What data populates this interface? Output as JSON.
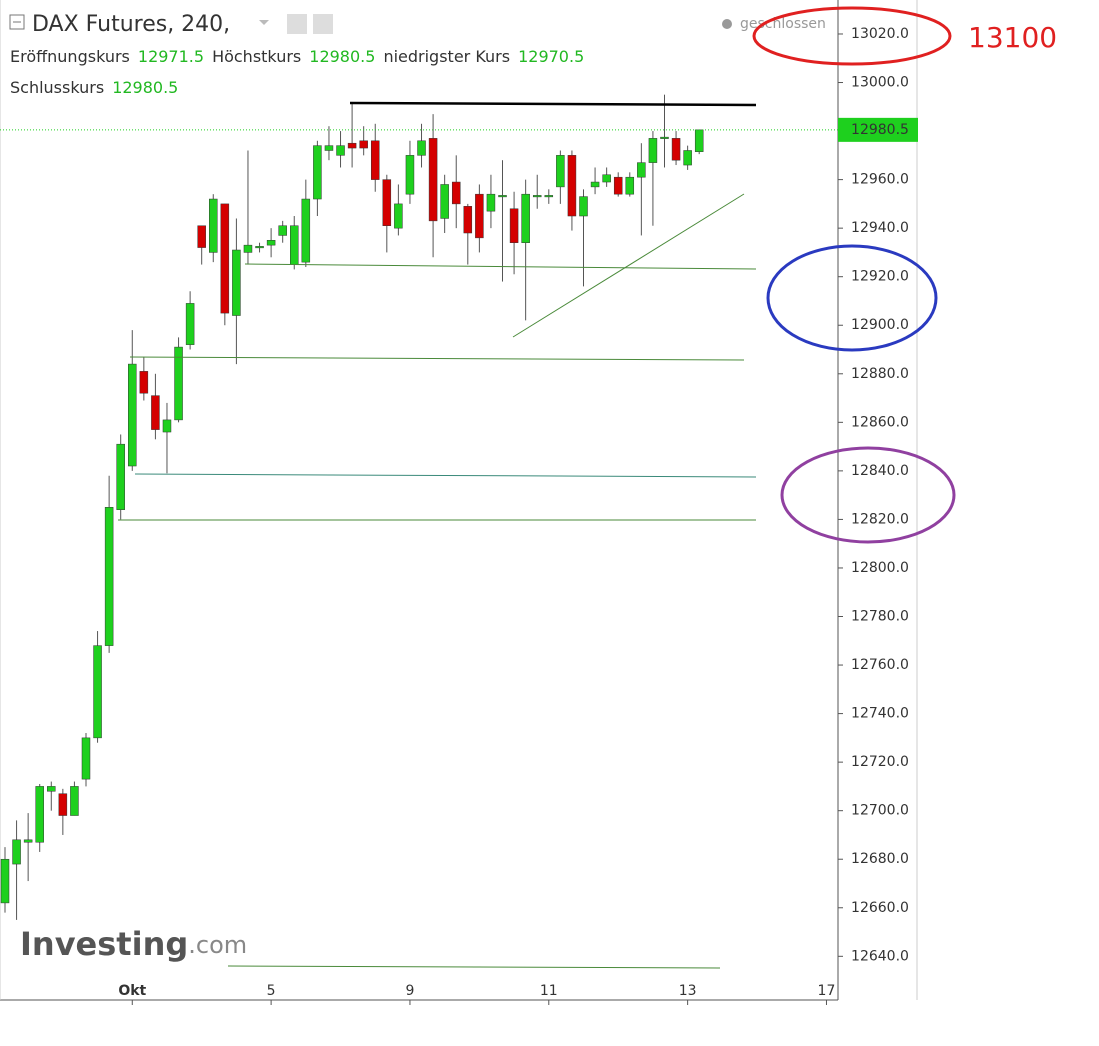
{
  "chart_data": {
    "type": "candlestick",
    "title": "DAX Futures, 240,",
    "legend": [
      {
        "label": "Eröffnungskurs",
        "value": 12971.5
      },
      {
        "label": "Höchstkurs",
        "value": 12980.5
      },
      {
        "label": "niedrigster Kurs",
        "value": 12970.5
      },
      {
        "label": "Schlusskurs",
        "value": 12980.5
      }
    ],
    "status": "geschlossen",
    "annotation": "13100",
    "brand": "Investing",
    "brand_suffix": ".com",
    "last_price": 12980.5,
    "up_color": "#1ed01e",
    "down_color": "#d40000",
    "legend_value_color": "#22b822",
    "ylim": [
      12622,
      13034
    ],
    "yticks": [
      {
        "value": 12640,
        "label": "12640.0"
      },
      {
        "value": 12660,
        "label": "12660.0"
      },
      {
        "value": 12680,
        "label": "12680.0"
      },
      {
        "value": 12700,
        "label": "12700.0"
      },
      {
        "value": 12720,
        "label": "12720.0"
      },
      {
        "value": 12740,
        "label": "12740.0"
      },
      {
        "value": 12760,
        "label": "12760.0"
      },
      {
        "value": 12780,
        "label": "12780.0"
      },
      {
        "value": 12800,
        "label": "12800.0"
      },
      {
        "value": 12820,
        "label": "12820.0"
      },
      {
        "value": 12840,
        "label": "12840.0"
      },
      {
        "value": 12860,
        "label": "12860.0"
      },
      {
        "value": 12880,
        "label": "12880.0"
      },
      {
        "value": 12900,
        "label": "12900.0"
      },
      {
        "value": 12920,
        "label": "12920.0"
      },
      {
        "value": 12940,
        "label": "12940.0"
      },
      {
        "value": 12960,
        "label": "12960.0"
      },
      {
        "value": 12980,
        "label": "12980.0"
      },
      {
        "value": 13000,
        "label": "13000.0"
      },
      {
        "value": 13020,
        "label": "13020.0"
      }
    ],
    "categories": [
      null,
      null,
      null,
      null,
      null,
      null,
      null,
      null,
      null,
      null,
      null,
      "Okt",
      null,
      null,
      null,
      null,
      null,
      null,
      null,
      null,
      null,
      null,
      null,
      "5",
      null,
      null,
      null,
      null,
      null,
      null,
      null,
      null,
      null,
      null,
      null,
      "9",
      null,
      null,
      null,
      null,
      null,
      null,
      null,
      null,
      null,
      null,
      null,
      "11",
      null,
      null,
      null,
      null,
      null,
      null,
      null,
      null,
      null,
      null,
      null,
      "13",
      null,
      null,
      null,
      null,
      null,
      null,
      null,
      null,
      null,
      null,
      null,
      "17"
    ],
    "open": [
      12662,
      12678,
      12687,
      12687,
      12708,
      12707,
      12698,
      12713,
      12730,
      12768,
      12824,
      12842,
      12881,
      12871,
      12856,
      12861,
      12892,
      12941,
      12930,
      12950,
      12904,
      12930,
      12932,
      12933,
      12937,
      12925,
      12926,
      12952,
      12972,
      12970,
      12975,
      12976,
      12976,
      12960,
      12940,
      12954,
      12970,
      12977,
      12944,
      12959,
      12949,
      12954,
      12947,
      12953,
      12948,
      12934,
      12953,
      12953,
      12957,
      12970,
      12945,
      12957,
      12959,
      12961,
      12954,
      12961,
      12967,
      12977,
      12977,
      12966,
      12971.5,
      null,
      null,
      null,
      null,
      null,
      null,
      null,
      null,
      null,
      null,
      null
    ],
    "high": [
      12685,
      12696,
      12699,
      12711,
      12712,
      12709,
      12712,
      12732,
      12774,
      12838,
      12855,
      12898,
      12887,
      12880,
      12868,
      12895,
      12914,
      12941,
      12954,
      12950,
      12944,
      12972,
      12934,
      12940,
      12943,
      12945,
      12960,
      12976,
      12982,
      12980,
      12992,
      12982,
      12983,
      12962,
      12958,
      12976,
      12983,
      12987,
      12962,
      12970,
      12950,
      12958,
      12962,
      12968,
      12955,
      12960,
      12962,
      12956,
      12972,
      12972,
      12956,
      12965,
      12965,
      12963,
      12963,
      12975,
      12980,
      12995,
      12980,
      12974,
      12980.5,
      null,
      null,
      null,
      null,
      null,
      null,
      null,
      null,
      null,
      null,
      null
    ],
    "low": [
      12658,
      12655,
      12671,
      12683,
      12700,
      12690,
      12698,
      12710,
      12728,
      12765,
      12820,
      12840,
      12869,
      12853,
      12839,
      12860,
      12890,
      12925,
      12926,
      12900,
      12884,
      12925,
      12930,
      12928,
      12934,
      12923,
      12924,
      12945,
      12968,
      12965,
      12965,
      12970,
      12955,
      12930,
      12937,
      12950,
      12965,
      12928,
      12938,
      12940,
      12925,
      12930,
      12940,
      12918,
      12921,
      12902,
      12948,
      12950,
      12950,
      12939,
      12916,
      12954,
      12957,
      12953,
      12953,
      12937,
      12941,
      12965,
      12966,
      12964,
      12970.5,
      null,
      null,
      null,
      null,
      null,
      null,
      null,
      null,
      null,
      null,
      null
    ],
    "close": [
      12680,
      12688,
      12688,
      12710,
      12710,
      12698,
      12710,
      12730,
      12768,
      12825,
      12851,
      12884,
      12872,
      12857,
      12861,
      12891,
      12909,
      12932,
      12952,
      12905,
      12931,
      12933,
      12932.5,
      12935,
      12941,
      12941,
      12952,
      12974,
      12974,
      12974,
      12973,
      12973,
      12960,
      12941,
      12950,
      12970,
      12976,
      12943,
      12958,
      12950,
      12938,
      12936,
      12954,
      12953.5,
      12934,
      12954,
      12953.5,
      12953.5,
      12970,
      12945,
      12953,
      12959,
      12962,
      12954,
      12961,
      12967,
      12977,
      12977.5,
      12968,
      12972,
      12980.5,
      null,
      null,
      null,
      null,
      null,
      null,
      null,
      null,
      null,
      null,
      null
    ]
  }
}
